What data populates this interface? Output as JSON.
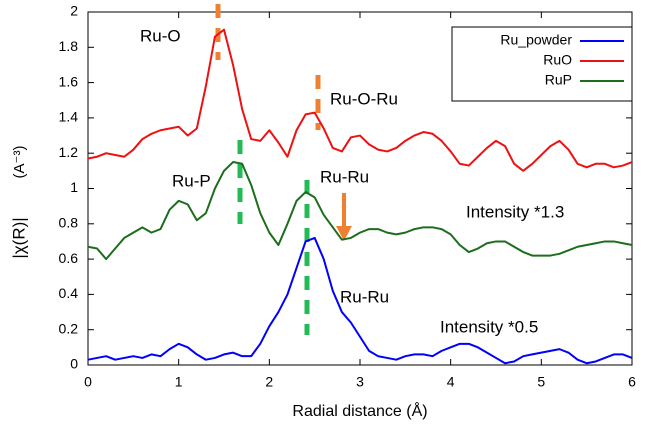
{
  "chart_data": {
    "type": "line",
    "x_label": "Radial distance   (Å)",
    "y_label": "|χ(R)|",
    "y_unit": "(A⁻³)",
    "x": [
      0,
      0.1,
      0.2,
      0.3,
      0.4,
      0.5,
      0.6,
      0.7,
      0.8,
      0.9,
      1,
      1.1,
      1.2,
      1.3,
      1.4,
      1.5,
      1.6,
      1.7,
      1.8,
      1.9,
      2,
      2.1,
      2.2,
      2.3,
      2.4,
      2.5,
      2.6,
      2.7,
      2.8,
      2.9,
      3,
      3.1,
      3.2,
      3.3,
      3.4,
      3.5,
      3.6,
      3.7,
      3.8,
      3.9,
      4,
      4.1,
      4.2,
      4.3,
      4.4,
      4.5,
      4.6,
      4.7,
      4.8,
      4.9,
      5,
      5.1,
      5.2,
      5.3,
      5.4,
      5.5,
      5.6,
      5.7,
      5.8,
      5.9,
      6
    ],
    "series": [
      {
        "name": "Ru_powder",
        "color": "#0000ff",
        "values": [
          0.03,
          0.04,
          0.05,
          0.03,
          0.04,
          0.05,
          0.04,
          0.06,
          0.05,
          0.09,
          0.12,
          0.1,
          0.06,
          0.03,
          0.04,
          0.06,
          0.07,
          0.05,
          0.05,
          0.12,
          0.22,
          0.3,
          0.4,
          0.55,
          0.7,
          0.72,
          0.6,
          0.42,
          0.3,
          0.24,
          0.16,
          0.08,
          0.05,
          0.04,
          0.03,
          0.05,
          0.06,
          0.06,
          0.05,
          0.08,
          0.1,
          0.12,
          0.12,
          0.1,
          0.07,
          0.04,
          0.01,
          0.02,
          0.05,
          0.06,
          0.07,
          0.08,
          0.09,
          0.07,
          0.03,
          0.01,
          0.02,
          0.04,
          0.06,
          0.06,
          0.04
        ]
      },
      {
        "name": "RuO",
        "color": "#ee1111",
        "values": [
          1.17,
          1.18,
          1.2,
          1.19,
          1.18,
          1.22,
          1.28,
          1.31,
          1.33,
          1.34,
          1.35,
          1.3,
          1.34,
          1.58,
          1.86,
          1.9,
          1.7,
          1.45,
          1.28,
          1.27,
          1.33,
          1.26,
          1.18,
          1.33,
          1.42,
          1.43,
          1.34,
          1.23,
          1.21,
          1.29,
          1.3,
          1.25,
          1.22,
          1.21,
          1.23,
          1.27,
          1.3,
          1.32,
          1.31,
          1.27,
          1.21,
          1.14,
          1.13,
          1.18,
          1.23,
          1.27,
          1.24,
          1.14,
          1.1,
          1.14,
          1.19,
          1.24,
          1.27,
          1.22,
          1.14,
          1.12,
          1.14,
          1.14,
          1.12,
          1.13,
          1.15
        ]
      },
      {
        "name": "RuP",
        "color": "#1c6e1c",
        "values": [
          0.67,
          0.66,
          0.6,
          0.66,
          0.72,
          0.75,
          0.78,
          0.75,
          0.77,
          0.88,
          0.93,
          0.91,
          0.82,
          0.86,
          1.0,
          1.1,
          1.15,
          1.14,
          1.02,
          0.86,
          0.75,
          0.68,
          0.8,
          0.93,
          0.98,
          0.95,
          0.85,
          0.78,
          0.71,
          0.72,
          0.75,
          0.77,
          0.77,
          0.75,
          0.74,
          0.75,
          0.77,
          0.78,
          0.78,
          0.77,
          0.74,
          0.68,
          0.64,
          0.66,
          0.69,
          0.7,
          0.7,
          0.67,
          0.64,
          0.62,
          0.62,
          0.62,
          0.63,
          0.65,
          0.67,
          0.68,
          0.69,
          0.7,
          0.7,
          0.69,
          0.68
        ]
      }
    ],
    "xlim": [
      0,
      6
    ],
    "xticks": [
      0,
      1,
      2,
      3,
      4,
      5,
      6
    ],
    "ylim": [
      0,
      2
    ],
    "yticks": [
      0,
      0.2,
      0.4,
      0.6,
      0.8,
      1,
      1.2,
      1.4,
      1.6,
      1.8,
      2
    ],
    "grid": false,
    "legend": "upper right",
    "annotations": [
      "Ru-O",
      "Ru-O-Ru",
      "Ru-P",
      "Ru-Ru",
      "Intensity *1.3",
      "Ru-Ru",
      "Intensity *0.5"
    ]
  }
}
